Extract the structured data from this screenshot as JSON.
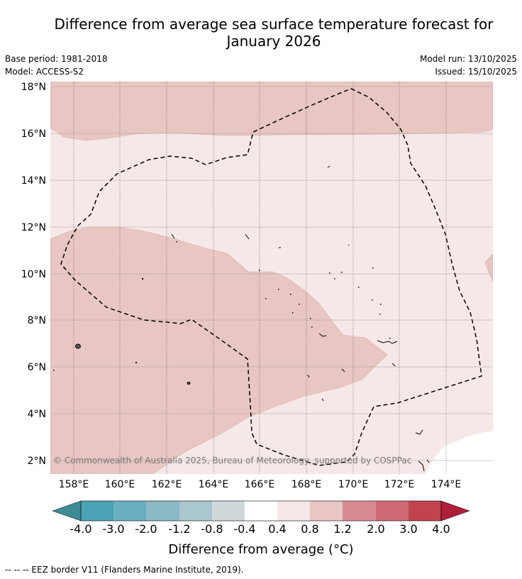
{
  "title": {
    "line1": "Difference from average sea surface temperature forecast for",
    "line2": "January 2026"
  },
  "meta": {
    "base_period": "Base period: 1981-2018",
    "model": "Model: ACCESS-S2",
    "model_run": "Model run: 13/10/2025",
    "issued": "Issued: 15/10/2025"
  },
  "map": {
    "lat_labels": [
      "18°N",
      "16°N",
      "14°N",
      "12°N",
      "10°N",
      "8°N",
      "6°N",
      "4°N",
      "2°N"
    ],
    "lon_labels": [
      "158°E",
      "160°E",
      "162°E",
      "164°E",
      "166°E",
      "168°E",
      "170°E",
      "172°E",
      "174°E"
    ],
    "copyright": "© Commonwealth of Australia 2025, Bureau of Meteorology, supported by COSPPac"
  },
  "colorbar": {
    "tick_labels": [
      "-4.0",
      "-3.0",
      "-2.0",
      "-1.2",
      "-0.8",
      "-0.4",
      "0.4",
      "0.8",
      "1.2",
      "2.0",
      "3.0",
      "4.0"
    ],
    "colors": [
      "#4aa2b4",
      "#6aafbf",
      "#8bb9c4",
      "#a9c7cc",
      "#cfd9dc",
      "#ffffff",
      "#f5e8e7",
      "#e8c6c3",
      "#d98b93",
      "#cd6a75",
      "#c1434f"
    ],
    "under_color": "#3f8a95",
    "over_color": "#b01f3a",
    "label": "Difference from average (°C)"
  },
  "footnote": "--  --  -- EEZ border V11 (Flanders Marine Institute, 2019)."
}
